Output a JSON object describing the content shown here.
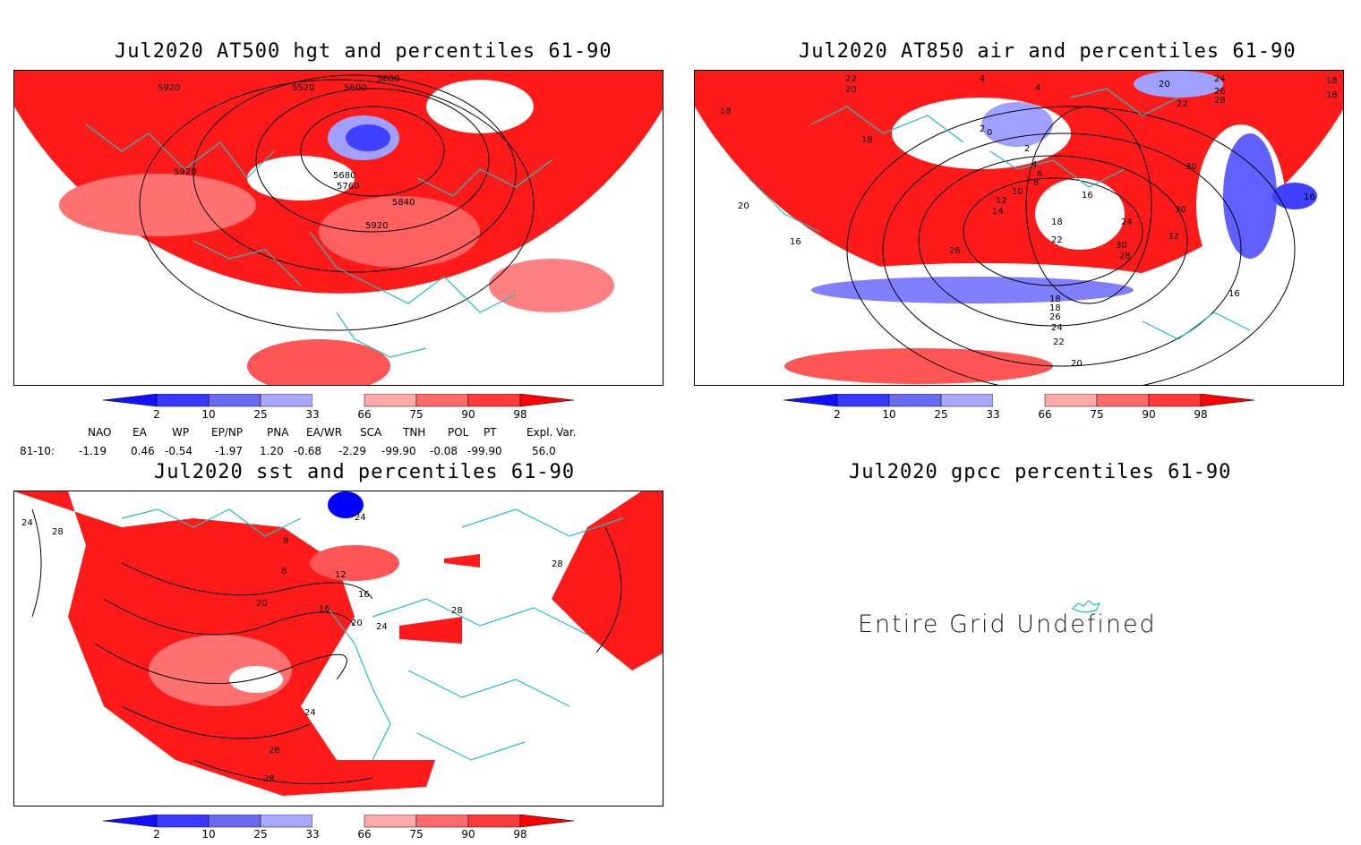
{
  "panels": {
    "p1": {
      "title": "Jul2020 AT500 hgt and percentiles 61-90",
      "contour_labels": [
        "5920",
        "5520",
        "5600",
        "5600",
        "5920",
        "5680",
        "5760",
        "5840",
        "5920"
      ]
    },
    "p2": {
      "title": "Jul2020 AT850 air and percentiles 61-90",
      "contour_labels": [
        "22",
        "20",
        "4",
        "4",
        "20",
        "24",
        "26",
        "28",
        "22",
        "18",
        "18",
        "18",
        "18",
        "2",
        "0",
        "2",
        "4",
        "6",
        "8",
        "10",
        "12",
        "14",
        "16",
        "18",
        "22",
        "30",
        "30",
        "32",
        "30",
        "28",
        "24",
        "26",
        "18",
        "18",
        "26",
        "24",
        "22",
        "20",
        "16",
        "16",
        "20",
        "16"
      ]
    },
    "p3": {
      "title": "Jul2020 sst and percentiles 61-90",
      "contour_labels": [
        "24",
        "28",
        "8",
        "12",
        "16",
        "20",
        "16",
        "20",
        "24",
        "28",
        "24",
        "28",
        "28",
        "28",
        "24",
        "8"
      ]
    },
    "p4": {
      "title": "Jul2020 gpcc percentiles 61-90",
      "message": "Entire Grid Undefined"
    }
  },
  "colorbar": {
    "labels": [
      "2",
      "10",
      "25",
      "33",
      "66",
      "75",
      "90",
      "98"
    ],
    "colors": [
      "#1010ff",
      "#3a3aff",
      "#6a6af0",
      "#a8a8ff",
      "#ffffff",
      "#ffa8a8",
      "#ff6a6a",
      "#ff3a3a",
      "#ff0000"
    ]
  },
  "indices": {
    "headers": [
      "NAO",
      "EA",
      "WP",
      "EP/NP",
      "PNA",
      "EA/WR",
      "SCA",
      "TNH",
      "POL",
      "PT",
      "Expl. Var."
    ],
    "row_label": "81-10:",
    "values": [
      "-1.19",
      "0.46",
      "-0.54",
      "-1.97",
      "1.20",
      "-0.68",
      "-2.29",
      "-99.90",
      "-0.08",
      "-99.90",
      "56.0"
    ]
  }
}
